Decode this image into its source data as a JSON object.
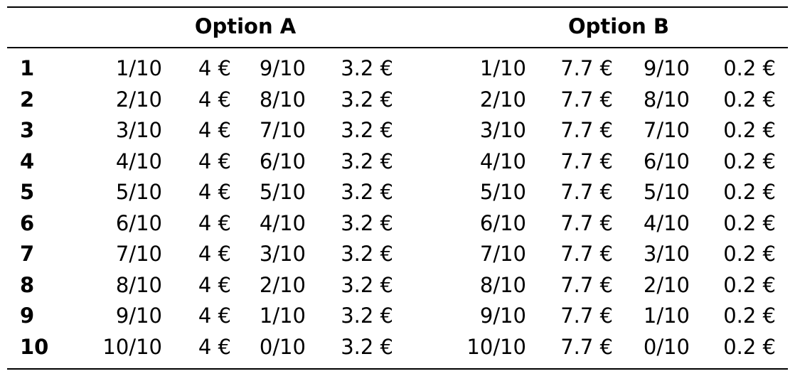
{
  "table": {
    "header_option_a": "Option A",
    "header_option_b": "Option B",
    "rows": [
      [
        "1",
        "1/10",
        "4 €",
        "9/10",
        "3.2 €",
        "1/10",
        "7.7 €",
        "9/10",
        "0.2 €"
      ],
      [
        "2",
        "2/10",
        "4 €",
        "8/10",
        "3.2 €",
        "2/10",
        "7.7 €",
        "8/10",
        "0.2 €"
      ],
      [
        "3",
        "3/10",
        "4 €",
        "7/10",
        "3.2 €",
        "3/10",
        "7.7 €",
        "7/10",
        "0.2 €"
      ],
      [
        "4",
        "4/10",
        "4 €",
        "6/10",
        "3.2 €",
        "4/10",
        "7.7 €",
        "6/10",
        "0.2 €"
      ],
      [
        "5",
        "5/10",
        "4 €",
        "5/10",
        "3.2 €",
        "5/10",
        "7.7 €",
        "5/10",
        "0.2 €"
      ],
      [
        "6",
        "6/10",
        "4 €",
        "4/10",
        "3.2 €",
        "6/10",
        "7.7 €",
        "4/10",
        "0.2 €"
      ],
      [
        "7",
        "7/10",
        "4 €",
        "3/10",
        "3.2 €",
        "7/10",
        "7.7 €",
        "3/10",
        "0.2 €"
      ],
      [
        "8",
        "8/10",
        "4 €",
        "2/10",
        "3.2 €",
        "8/10",
        "7.7 €",
        "2/10",
        "0.2 €"
      ],
      [
        "9",
        "9/10",
        "4 €",
        "1/10",
        "3.2 €",
        "9/10",
        "7.7 €",
        "1/10",
        "0.2 €"
      ],
      [
        "10",
        "10/10",
        "4 €",
        "0/10",
        "3.2 €",
        "10/10",
        "7.7 €",
        "0/10",
        "0.2 €"
      ]
    ]
  }
}
